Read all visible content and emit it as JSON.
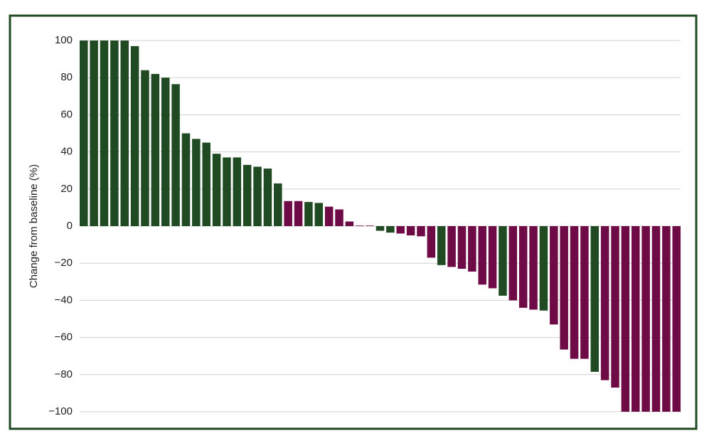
{
  "chart_data": {
    "type": "bar",
    "y_label": "Change from baseline (%)",
    "values": [
      100,
      100,
      100,
      100,
      100,
      97,
      84,
      82,
      80,
      76.5,
      50,
      47,
      45,
      39,
      37,
      37,
      33,
      32,
      31,
      23,
      13.5,
      13.5,
      13,
      12.5,
      10.5,
      9,
      2.5,
      0.3,
      0.3,
      -2.5,
      -3.5,
      -4,
      -5,
      -5.5,
      -17,
      -21,
      -22,
      -23,
      -24.5,
      -31.5,
      -33.5,
      -37.5,
      -40,
      -44,
      -45,
      -45.5,
      -53,
      -66.5,
      -71.5,
      -71.5,
      -78.5,
      -83,
      -87,
      -100,
      -100,
      -100,
      -100,
      -100,
      -100
    ],
    "colors": [
      "#1f4a22",
      "#1f4a22",
      "#1f4a22",
      "#1f4a22",
      "#1f4a22",
      "#1f4a22",
      "#1f4a22",
      "#1f4a22",
      "#1f4a22",
      "#1f4a22",
      "#1f4a22",
      "#1f4a22",
      "#1f4a22",
      "#1f4a22",
      "#1f4a22",
      "#1f4a22",
      "#1f4a22",
      "#1f4a22",
      "#1f4a22",
      "#1f4a22",
      "#6e0b47",
      "#6e0b47",
      "#1f4a22",
      "#1f4a22",
      "#6e0b47",
      "#6e0b47",
      "#6e0b47",
      "#6e0b47",
      "#6e0b47",
      "#1f4a22",
      "#1f4a22",
      "#6e0b47",
      "#6e0b47",
      "#6e0b47",
      "#6e0b47",
      "#1f4a22",
      "#6e0b47",
      "#6e0b47",
      "#6e0b47",
      "#6e0b47",
      "#6e0b47",
      "#1f4a22",
      "#6e0b47",
      "#6e0b47",
      "#6e0b47",
      "#1f4a22",
      "#6e0b47",
      "#6e0b47",
      "#6e0b47",
      "#6e0b47",
      "#1f4a22",
      "#6e0b47",
      "#6e0b47",
      "#6e0b47",
      "#6e0b47",
      "#6e0b47",
      "#6e0b47",
      "#6e0b47",
      "#6e0b47"
    ],
    "ylim": [
      -100,
      100
    ],
    "yticks": [
      100,
      80,
      60,
      40,
      20,
      0,
      {
        "value": -20,
        "label": "−20"
      },
      {
        "value": -40,
        "label": "−40"
      },
      {
        "value": -60,
        "label": "−60"
      },
      {
        "value": -80,
        "label": "−80"
      },
      {
        "value": -100,
        "label": "−100"
      }
    ],
    "grid": true
  }
}
